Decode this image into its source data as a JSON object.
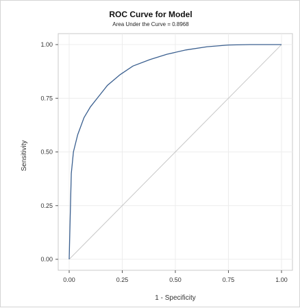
{
  "chart_data": {
    "type": "line",
    "title": "ROC Curve for Model",
    "subtitle": "Area Under the Curve = 0.8968",
    "xlabel": "1 - Specificity",
    "ylabel": "Sensitivity",
    "xlim": [
      0,
      1
    ],
    "ylim": [
      0,
      1
    ],
    "xticks": [
      "0.00",
      "0.25",
      "0.50",
      "0.75",
      "1.00"
    ],
    "yticks": [
      "0.00",
      "0.25",
      "0.50",
      "0.75",
      "1.00"
    ],
    "grid": true,
    "legend": "none",
    "series": [
      {
        "color": "#3a5f8f",
        "x": [
          0,
          0.005,
          0.01,
          0.02,
          0.04,
          0.07,
          0.1,
          0.14,
          0.18,
          0.24,
          0.3,
          0.38,
          0.46,
          0.55,
          0.65,
          0.75,
          0.85,
          1.0
        ],
        "y": [
          0,
          0.2,
          0.4,
          0.5,
          0.58,
          0.66,
          0.71,
          0.76,
          0.81,
          0.86,
          0.9,
          0.93,
          0.955,
          0.975,
          0.99,
          0.998,
          1.0,
          1.0
        ]
      },
      {
        "color": "#c8c8c8",
        "x": [
          0,
          1
        ],
        "y": [
          0,
          1
        ]
      }
    ]
  }
}
